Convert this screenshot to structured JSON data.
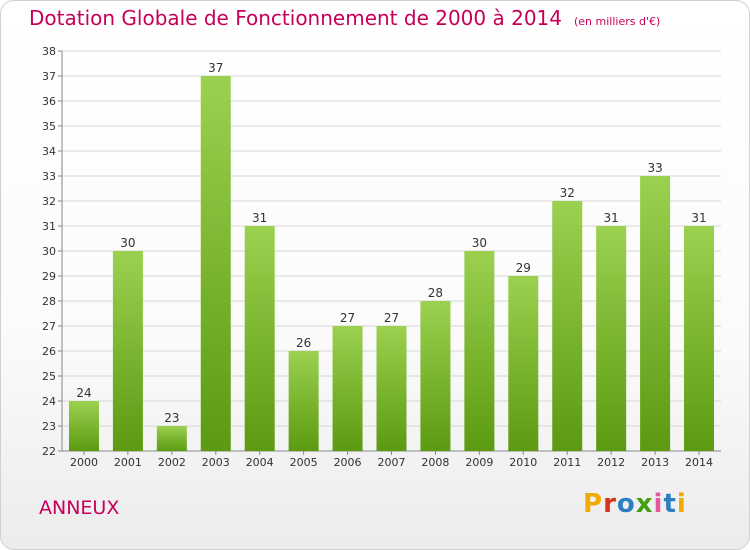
{
  "title": "Dotation Globale de Fonctionnement de 2000 à 2014",
  "subtitle": "(en milliers d'€)",
  "commune": "ANNEUX",
  "logo_text": "Proxiti",
  "colors": {
    "title": "#c8005a",
    "bar_top": "#9bd14f",
    "bar_bottom": "#5c9a12",
    "grid": "#d6d6d6",
    "logo": [
      "#f2a900",
      "#d9311c",
      "#2d7fc1",
      "#43a012",
      "#e25a9c",
      "#2d7fc1",
      "#f2a900"
    ]
  },
  "chart_data": {
    "type": "bar",
    "title": "Dotation Globale de Fonctionnement de 2000 à 2014",
    "subtitle": "(en milliers d'€)",
    "categories": [
      "2000",
      "2001",
      "2002",
      "2003",
      "2004",
      "2005",
      "2006",
      "2007",
      "2008",
      "2009",
      "2010",
      "2011",
      "2012",
      "2013",
      "2014"
    ],
    "values": [
      24,
      30,
      23,
      37,
      31,
      26,
      27,
      27,
      28,
      30,
      29,
      32,
      31,
      33,
      31
    ],
    "ylim": [
      22,
      38
    ],
    "yticks": [
      22,
      23,
      24,
      25,
      26,
      27,
      28,
      29,
      30,
      31,
      32,
      33,
      34,
      35,
      36,
      37,
      38
    ],
    "grid": true,
    "data_labels": true
  }
}
